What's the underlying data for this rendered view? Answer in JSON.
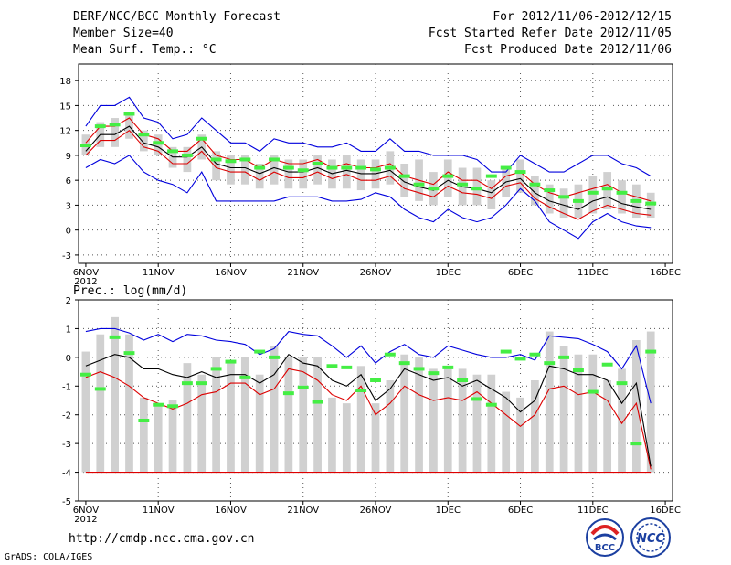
{
  "header": {
    "title": "DERF/NCC/BCC Monthly Forecast",
    "member_size": "Member Size=40",
    "variable": "Mean Surf. Temp.: °C",
    "forecast_period": "For 2012/11/06-2012/12/15",
    "start_date": "Fcst Started Refer Date 2012/11/05",
    "produced_date": "Fcst Produced Date 2012/11/06"
  },
  "footer": {
    "url": "http://cmdp.ncc.cma.gov.cn",
    "credit": "GrADS: COLA/IGES",
    "logo_bcc": "BCC",
    "logo_ncc": "NCC"
  },
  "colors": {
    "blue": "#0000dd",
    "red": "#dd0000",
    "black": "#000000",
    "green": "#44ee44",
    "box": "#d0d0d0",
    "grid": "#555555"
  },
  "chart_data": [
    {
      "type": "line",
      "title": "Mean Surf. Temp.: °C",
      "xticks": [
        "6NOV",
        "11NOV",
        "16NOV",
        "21NOV",
        "26NOV",
        "1DEC",
        "6DEC",
        "11DEC",
        "16DEC"
      ],
      "xtick_year": "2012",
      "days": 40,
      "ylim": [
        -4,
        20
      ],
      "yticks": [
        -3,
        0,
        3,
        6,
        9,
        12,
        15,
        18
      ],
      "series": [
        {
          "name": "max",
          "color": "blue",
          "values": [
            12.5,
            15,
            15,
            16,
            13.5,
            13,
            11,
            11.5,
            13.5,
            12,
            10.5,
            10.5,
            9.5,
            11,
            10.5,
            10.5,
            10,
            10,
            10.5,
            9.5,
            9.5,
            11,
            9.5,
            9.5,
            9,
            9,
            9,
            8.5,
            7,
            7,
            9,
            8,
            7,
            7,
            8,
            9,
            9,
            8,
            7.5,
            6.5
          ]
        },
        {
          "name": "upper",
          "color": "red",
          "values": [
            10.5,
            12.5,
            12.5,
            13.5,
            11.5,
            11,
            9.5,
            9.5,
            11,
            9,
            8.5,
            8.5,
            7.5,
            8.5,
            8,
            8,
            8.5,
            7.5,
            8,
            7.5,
            7.5,
            8,
            6.5,
            6,
            5.5,
            7,
            6,
            6,
            5,
            6.5,
            7,
            5.5,
            4.5,
            4,
            4.5,
            5,
            5.5,
            4.5,
            4,
            3.5
          ]
        },
        {
          "name": "mean",
          "color": "black",
          "values": [
            9.5,
            11.5,
            11.5,
            12.5,
            10.5,
            10,
            8.8,
            8.8,
            10,
            8,
            7.5,
            7.5,
            6.8,
            7.5,
            7,
            7,
            7.5,
            6.8,
            7.2,
            6.8,
            6.8,
            7.2,
            5.8,
            5.2,
            4.8,
            6,
            5.2,
            5,
            4.5,
            5.8,
            6.2,
            4.5,
            3.5,
            3,
            2.5,
            3.5,
            4,
            3.2,
            2.8,
            2.5
          ]
        },
        {
          "name": "lower",
          "color": "red",
          "values": [
            9,
            10.8,
            10.8,
            12,
            10,
            9.5,
            8,
            8,
            9.5,
            7.5,
            7,
            7,
            6,
            7,
            6.3,
            6.3,
            7,
            6.2,
            6.7,
            6,
            6,
            6.5,
            5,
            4.5,
            4,
            5.3,
            4.5,
            4.3,
            3.8,
            5.3,
            5.7,
            3.8,
            2.8,
            2,
            1.3,
            2.3,
            3,
            2.5,
            2,
            1.8
          ]
        },
        {
          "name": "min",
          "color": "blue",
          "values": [
            7.5,
            8.5,
            8,
            9,
            7,
            6,
            5.5,
            4.5,
            7,
            3.5,
            3.5,
            3.5,
            3.5,
            3.5,
            4,
            4,
            4,
            3.5,
            3.5,
            3.7,
            4.5,
            4,
            2.5,
            1.5,
            1,
            2.5,
            1.5,
            1,
            1.5,
            3,
            5,
            3.5,
            1,
            0,
            -1,
            1,
            2,
            1,
            0.5,
            0.3
          ]
        }
      ],
      "ensemble_box": {
        "low": [
          9,
          10,
          10,
          11,
          9.5,
          9,
          7.5,
          7,
          8.5,
          6,
          5.5,
          5.5,
          5,
          5.5,
          5,
          5,
          5.5,
          5,
          5,
          4.8,
          5,
          5.5,
          4,
          3.5,
          3,
          4,
          3,
          3,
          2.5,
          4,
          4.5,
          3,
          2,
          1.5,
          1.5,
          2,
          2.5,
          2,
          1.5,
          1.5
        ],
        "high": [
          11.5,
          13,
          13.5,
          14,
          12,
          11.5,
          10,
          10,
          11.5,
          9.5,
          9,
          9,
          8,
          9,
          8.5,
          8.5,
          9,
          8.5,
          9,
          8.5,
          8.5,
          9.5,
          8,
          8.5,
          7,
          8.5,
          7.5,
          7.5,
          6,
          7.5,
          8.5,
          6.5,
          5.5,
          5,
          5.5,
          6.5,
          7,
          6,
          5.5,
          4.5
        ]
      },
      "green_marks": [
        10.2,
        12.5,
        12.7,
        14,
        11.5,
        10.5,
        9.5,
        9,
        11,
        8.5,
        8.3,
        8.5,
        7.5,
        8.5,
        7.5,
        7.2,
        8,
        7.5,
        7.5,
        7.5,
        7.3,
        7.5,
        6.5,
        5.5,
        5,
        6.5,
        5.5,
        5,
        6.5,
        7.5,
        7,
        5.5,
        4.8,
        4,
        3.5,
        4.5,
        5,
        4.5,
        3.5,
        3.2
      ]
    },
    {
      "type": "line",
      "title": "Prec.: log(mm/d)",
      "xticks": [
        "6NOV",
        "11NOV",
        "16NOV",
        "21NOV",
        "26NOV",
        "1DEC",
        "6DEC",
        "11DEC",
        "16DEC"
      ],
      "xtick_year": "2012",
      "days": 40,
      "ylim": [
        -5,
        2
      ],
      "yticks": [
        -5,
        -4,
        -3,
        -2,
        -1,
        0,
        1,
        2
      ],
      "series": [
        {
          "name": "max",
          "color": "blue",
          "values": [
            0.9,
            1.0,
            1.0,
            0.85,
            0.6,
            0.8,
            0.55,
            0.8,
            0.75,
            0.6,
            0.55,
            0.45,
            0.1,
            0.3,
            0.9,
            0.8,
            0.75,
            0.4,
            0,
            0.4,
            -0.2,
            0.2,
            0.45,
            0.1,
            0,
            0.4,
            0.25,
            0.1,
            0.0,
            0.0,
            0.1,
            -0.1,
            0.75,
            0.7,
            0.65,
            0.45,
            0.2,
            -0.4,
            0.4,
            -1.6
          ]
        },
        {
          "name": "upper",
          "color": "red",
          "values": [
            -0.7,
            -0.5,
            -0.7,
            -1.0,
            -1.4,
            -1.6,
            -1.8,
            -1.6,
            -1.3,
            -1.2,
            -0.9,
            -0.9,
            -1.3,
            -1.1,
            -0.4,
            -0.5,
            -0.8,
            -1.3,
            -1.5,
            -1.0,
            -2.0,
            -1.6,
            -1.0,
            -1.3,
            -1.5,
            -1.4,
            -1.5,
            -1.2,
            -1.6,
            -2.0,
            -2.4,
            -2.0,
            -1.1,
            -1.0,
            -1.3,
            -1.2,
            -1.5,
            -2.3,
            -1.6,
            -3.9
          ]
        },
        {
          "name": "mean",
          "color": "black",
          "values": [
            -0.3,
            -0.1,
            0.1,
            0.0,
            -0.4,
            -0.4,
            -0.6,
            -0.7,
            -0.5,
            -0.7,
            -0.6,
            -0.6,
            -0.9,
            -0.6,
            0.1,
            -0.2,
            -0.3,
            -0.8,
            -1.0,
            -0.6,
            -1.5,
            -1.1,
            -0.4,
            -0.6,
            -0.8,
            -0.7,
            -1.0,
            -0.8,
            -1.1,
            -1.4,
            -1.9,
            -1.5,
            -0.3,
            -0.4,
            -0.6,
            -0.6,
            -0.8,
            -1.6,
            -0.9,
            -3.8
          ]
        },
        {
          "name": "lower",
          "color": "red",
          "values": [
            -4,
            -4,
            -4,
            -4,
            -4,
            -4,
            -4,
            -4,
            -4,
            -4,
            -4,
            -4,
            -4,
            -4,
            -4,
            -4,
            -4,
            -4,
            -4,
            -4,
            -4,
            -4,
            -4,
            -4,
            -4,
            -4,
            -4,
            -4,
            -4,
            -4,
            -4,
            -4,
            -4,
            -4,
            -4,
            -4,
            -4,
            -4,
            -4,
            -4
          ]
        }
      ],
      "ensemble_box": {
        "low": [
          -4,
          -4,
          -4,
          -4,
          -4,
          -4,
          -4,
          -4,
          -4,
          -4,
          -4,
          -4,
          -4,
          -4,
          -4,
          -4,
          -4,
          -4,
          -4,
          -4,
          -4,
          -4,
          -4,
          -4,
          -4,
          -4,
          -4,
          -4,
          -4,
          -4,
          -4,
          -4,
          -4,
          -4,
          -4,
          -4,
          -4,
          -4,
          -4,
          -4
        ],
        "high": [
          0.2,
          0.8,
          1.4,
          0.8,
          -1.4,
          -1.6,
          -1.5,
          -0.2,
          -0.6,
          0.0,
          -0.1,
          0.0,
          -0.6,
          0.4,
          0.0,
          0.0,
          0.0,
          -1.4,
          -1.6,
          -0.3,
          -1.6,
          -0.8,
          0.1,
          0.0,
          -0.4,
          -0.3,
          -0.4,
          -0.6,
          -0.6,
          -1.2,
          -1.4,
          -0.8,
          0.9,
          0.4,
          0.1,
          0.1,
          -0.8,
          -0.4,
          0.6,
          0.9
        ]
      },
      "green_marks": [
        -0.6,
        -1.1,
        0.7,
        0.15,
        -2.2,
        -1.65,
        -1.7,
        -0.9,
        -0.9,
        -0.4,
        -0.15,
        -0.7,
        0.2,
        0.0,
        -1.25,
        -1.05,
        -1.55,
        -0.3,
        -0.35,
        -1.15,
        -0.8,
        0.1,
        -0.2,
        -0.4,
        -0.55,
        -0.35,
        -0.8,
        -1.45,
        -1.65,
        0.2,
        -0.05,
        0.1,
        -0.2,
        0.0,
        -0.45,
        -1.2,
        -0.25,
        -0.9,
        -3.0,
        0.2
      ]
    }
  ]
}
